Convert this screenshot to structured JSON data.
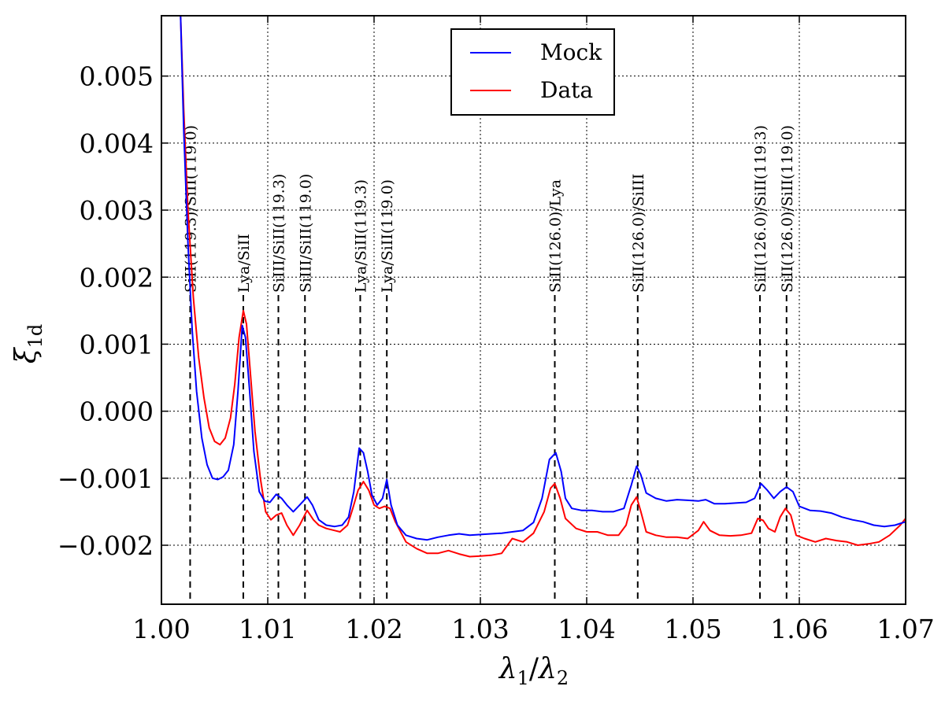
{
  "chart_data": {
    "type": "line",
    "title": "",
    "xlabel": "λ1/λ2",
    "ylabel": "ξ1d",
    "xlim": [
      1.0,
      1.07
    ],
    "ylim": [
      -0.00288,
      0.0059
    ],
    "grid": true,
    "legend_position": "top-center",
    "x_ticks": [
      {
        "value": 1.0,
        "label": "1.00"
      },
      {
        "value": 1.01,
        "label": "1.01"
      },
      {
        "value": 1.02,
        "label": "1.02"
      },
      {
        "value": 1.03,
        "label": "1.03"
      },
      {
        "value": 1.04,
        "label": "1.04"
      },
      {
        "value": 1.05,
        "label": "1.05"
      },
      {
        "value": 1.06,
        "label": "1.06"
      },
      {
        "value": 1.07,
        "label": "1.07"
      }
    ],
    "y_ticks": [
      {
        "value": 0.005,
        "label": "0.005"
      },
      {
        "value": 0.004,
        "label": "0.004"
      },
      {
        "value": 0.003,
        "label": "0.003"
      },
      {
        "value": 0.002,
        "label": "0.002"
      },
      {
        "value": 0.001,
        "label": "0.001"
      },
      {
        "value": 0.0,
        "label": "0.000"
      },
      {
        "value": -0.001,
        "label": "−0.001"
      },
      {
        "value": -0.002,
        "label": "−0.002"
      }
    ],
    "series": [
      {
        "name": "Mock",
        "color": "#0000ff",
        "points": [
          [
            1.0018,
            0.0059
          ],
          [
            1.0021,
            0.0042
          ],
          [
            1.0025,
            0.0025
          ],
          [
            1.0029,
            0.0012
          ],
          [
            1.0033,
            0.0003
          ],
          [
            1.0038,
            -0.0004
          ],
          [
            1.0043,
            -0.0008
          ],
          [
            1.0048,
            -0.001
          ],
          [
            1.0053,
            -0.00102
          ],
          [
            1.0058,
            -0.00098
          ],
          [
            1.0063,
            -0.00088
          ],
          [
            1.0068,
            -0.0005
          ],
          [
            1.0072,
            0.0003
          ],
          [
            1.0076,
            0.00128
          ],
          [
            1.0079,
            0.0011
          ],
          [
            1.0083,
            0.0003
          ],
          [
            1.0087,
            -0.0006
          ],
          [
            1.0092,
            -0.0012
          ],
          [
            1.0097,
            -0.00134
          ],
          [
            1.0102,
            -0.00136
          ],
          [
            1.0108,
            -0.00124
          ],
          [
            1.0113,
            -0.0013
          ],
          [
            1.0118,
            -0.0014
          ],
          [
            1.0124,
            -0.0015
          ],
          [
            1.013,
            -0.0014
          ],
          [
            1.0137,
            -0.00128
          ],
          [
            1.0142,
            -0.0014
          ],
          [
            1.0148,
            -0.00162
          ],
          [
            1.0155,
            -0.0017
          ],
          [
            1.0163,
            -0.00172
          ],
          [
            1.017,
            -0.0017
          ],
          [
            1.0176,
            -0.00158
          ],
          [
            1.0181,
            -0.0012
          ],
          [
            1.0186,
            -0.00055
          ],
          [
            1.019,
            -0.00062
          ],
          [
            1.0194,
            -0.0009
          ],
          [
            1.0198,
            -0.00125
          ],
          [
            1.0203,
            -0.0014
          ],
          [
            1.0208,
            -0.0013
          ],
          [
            1.0212,
            -0.00102
          ],
          [
            1.0216,
            -0.0014
          ],
          [
            1.0222,
            -0.0017
          ],
          [
            1.023,
            -0.00185
          ],
          [
            1.024,
            -0.0019
          ],
          [
            1.025,
            -0.00192
          ],
          [
            1.026,
            -0.00188
          ],
          [
            1.027,
            -0.00185
          ],
          [
            1.028,
            -0.00183
          ],
          [
            1.029,
            -0.00185
          ],
          [
            1.03,
            -0.00184
          ],
          [
            1.031,
            -0.00183
          ],
          [
            1.032,
            -0.00182
          ],
          [
            1.033,
            -0.0018
          ],
          [
            1.034,
            -0.00178
          ],
          [
            1.035,
            -0.00166
          ],
          [
            1.0358,
            -0.0013
          ],
          [
            1.0365,
            -0.00072
          ],
          [
            1.0371,
            -0.00062
          ],
          [
            1.0376,
            -0.0009
          ],
          [
            1.038,
            -0.0013
          ],
          [
            1.0386,
            -0.00145
          ],
          [
            1.0395,
            -0.00148
          ],
          [
            1.0405,
            -0.00148
          ],
          [
            1.0415,
            -0.0015
          ],
          [
            1.0425,
            -0.0015
          ],
          [
            1.0435,
            -0.00145
          ],
          [
            1.0442,
            -0.0011
          ],
          [
            1.0447,
            -0.00082
          ],
          [
            1.0451,
            -0.00095
          ],
          [
            1.0456,
            -0.00122
          ],
          [
            1.0465,
            -0.0013
          ],
          [
            1.0475,
            -0.00134
          ],
          [
            1.0485,
            -0.00132
          ],
          [
            1.0495,
            -0.00133
          ],
          [
            1.0505,
            -0.00134
          ],
          [
            1.0512,
            -0.00132
          ],
          [
            1.052,
            -0.00138
          ],
          [
            1.053,
            -0.00138
          ],
          [
            1.054,
            -0.00137
          ],
          [
            1.055,
            -0.00136
          ],
          [
            1.0558,
            -0.0013
          ],
          [
            1.0564,
            -0.00108
          ],
          [
            1.057,
            -0.00118
          ],
          [
            1.0576,
            -0.0013
          ],
          [
            1.0582,
            -0.0012
          ],
          [
            1.0588,
            -0.00113
          ],
          [
            1.0594,
            -0.0012
          ],
          [
            1.06,
            -0.00142
          ],
          [
            1.061,
            -0.00148
          ],
          [
            1.062,
            -0.00149
          ],
          [
            1.063,
            -0.00152
          ],
          [
            1.064,
            -0.00158
          ],
          [
            1.065,
            -0.00162
          ],
          [
            1.066,
            -0.00165
          ],
          [
            1.067,
            -0.0017
          ],
          [
            1.068,
            -0.00172
          ],
          [
            1.069,
            -0.0017
          ],
          [
            1.07,
            -0.00165
          ]
        ]
      },
      {
        "name": "Data",
        "color": "#ff0000",
        "points": [
          [
            1.0018,
            0.0059
          ],
          [
            1.0021,
            0.0045
          ],
          [
            1.0025,
            0.003
          ],
          [
            1.003,
            0.0017
          ],
          [
            1.0035,
            0.0008
          ],
          [
            1.004,
            0.0002
          ],
          [
            1.0045,
            -0.00025
          ],
          [
            1.005,
            -0.00045
          ],
          [
            1.0055,
            -0.0005
          ],
          [
            1.006,
            -0.0004
          ],
          [
            1.0065,
            -0.0001
          ],
          [
            1.0069,
            0.0004
          ],
          [
            1.0073,
            0.0011
          ],
          [
            1.0077,
            0.0015
          ],
          [
            1.008,
            0.0013
          ],
          [
            1.0084,
            0.0005
          ],
          [
            1.0088,
            -0.0003
          ],
          [
            1.0093,
            -0.001
          ],
          [
            1.0098,
            -0.0015
          ],
          [
            1.0103,
            -0.00162
          ],
          [
            1.0108,
            -0.00155
          ],
          [
            1.0113,
            -0.00152
          ],
          [
            1.0118,
            -0.0017
          ],
          [
            1.0124,
            -0.00185
          ],
          [
            1.013,
            -0.0017
          ],
          [
            1.0137,
            -0.00148
          ],
          [
            1.0143,
            -0.00162
          ],
          [
            1.0148,
            -0.0017
          ],
          [
            1.0155,
            -0.00175
          ],
          [
            1.0163,
            -0.00178
          ],
          [
            1.0168,
            -0.0018
          ],
          [
            1.0175,
            -0.0017
          ],
          [
            1.018,
            -0.00145
          ],
          [
            1.0185,
            -0.00118
          ],
          [
            1.019,
            -0.00105
          ],
          [
            1.0195,
            -0.00118
          ],
          [
            1.02,
            -0.0014
          ],
          [
            1.0205,
            -0.00145
          ],
          [
            1.021,
            -0.00142
          ],
          [
            1.0215,
            -0.00145
          ],
          [
            1.022,
            -0.00165
          ],
          [
            1.023,
            -0.00195
          ],
          [
            1.024,
            -0.00205
          ],
          [
            1.025,
            -0.00212
          ],
          [
            1.026,
            -0.00212
          ],
          [
            1.027,
            -0.00208
          ],
          [
            1.028,
            -0.00213
          ],
          [
            1.029,
            -0.00217
          ],
          [
            1.03,
            -0.00216
          ],
          [
            1.031,
            -0.00215
          ],
          [
            1.032,
            -0.00212
          ],
          [
            1.033,
            -0.0019
          ],
          [
            1.034,
            -0.00195
          ],
          [
            1.035,
            -0.00182
          ],
          [
            1.036,
            -0.0015
          ],
          [
            1.0366,
            -0.00115
          ],
          [
            1.037,
            -0.00108
          ],
          [
            1.0375,
            -0.0013
          ],
          [
            1.038,
            -0.0016
          ],
          [
            1.039,
            -0.00175
          ],
          [
            1.04,
            -0.0018
          ],
          [
            1.041,
            -0.0018
          ],
          [
            1.042,
            -0.00185
          ],
          [
            1.043,
            -0.00185
          ],
          [
            1.0437,
            -0.0017
          ],
          [
            1.0442,
            -0.0014
          ],
          [
            1.0447,
            -0.00128
          ],
          [
            1.0451,
            -0.0015
          ],
          [
            1.0456,
            -0.0018
          ],
          [
            1.0465,
            -0.00185
          ],
          [
            1.0475,
            -0.00188
          ],
          [
            1.0485,
            -0.00188
          ],
          [
            1.0495,
            -0.0019
          ],
          [
            1.0505,
            -0.00178
          ],
          [
            1.051,
            -0.00165
          ],
          [
            1.0516,
            -0.00178
          ],
          [
            1.0525,
            -0.00185
          ],
          [
            1.0535,
            -0.00186
          ],
          [
            1.0545,
            -0.00185
          ],
          [
            1.0555,
            -0.00182
          ],
          [
            1.0561,
            -0.0016
          ],
          [
            1.0566,
            -0.00163
          ],
          [
            1.0571,
            -0.00175
          ],
          [
            1.0577,
            -0.0018
          ],
          [
            1.0582,
            -0.00158
          ],
          [
            1.0587,
            -0.00145
          ],
          [
            1.0592,
            -0.00155
          ],
          [
            1.0597,
            -0.00185
          ],
          [
            1.0605,
            -0.0019
          ],
          [
            1.0615,
            -0.00195
          ],
          [
            1.0625,
            -0.0019
          ],
          [
            1.0635,
            -0.00193
          ],
          [
            1.0645,
            -0.00195
          ],
          [
            1.0655,
            -0.002
          ],
          [
            1.0665,
            -0.00198
          ],
          [
            1.0675,
            -0.00195
          ],
          [
            1.0685,
            -0.00185
          ],
          [
            1.0695,
            -0.0017
          ],
          [
            1.07,
            -0.0016
          ]
        ]
      }
    ],
    "vlines": [
      {
        "x": 1.0027,
        "label": "SiII(119.3)/SiII(119.0)"
      },
      {
        "x": 1.0077,
        "label": "Lya/SiII"
      },
      {
        "x": 1.011,
        "label": "SiIII/SiII(119.3)"
      },
      {
        "x": 1.0135,
        "label": "SiIII/SiII(119.0)"
      },
      {
        "x": 1.0187,
        "label": "Lya/SiII(119.3)"
      },
      {
        "x": 1.0212,
        "label": "Lya/SiII(119.0)"
      },
      {
        "x": 1.037,
        "label": "SiII(126.0)/Lya"
      },
      {
        "x": 1.0448,
        "label": "SiII(126.0)/SiIII"
      },
      {
        "x": 1.0563,
        "label": "SiII(126.0)/SiII(119.3)"
      },
      {
        "x": 1.0588,
        "label": "SiII(126.0)/SiII(119.0)"
      }
    ]
  }
}
